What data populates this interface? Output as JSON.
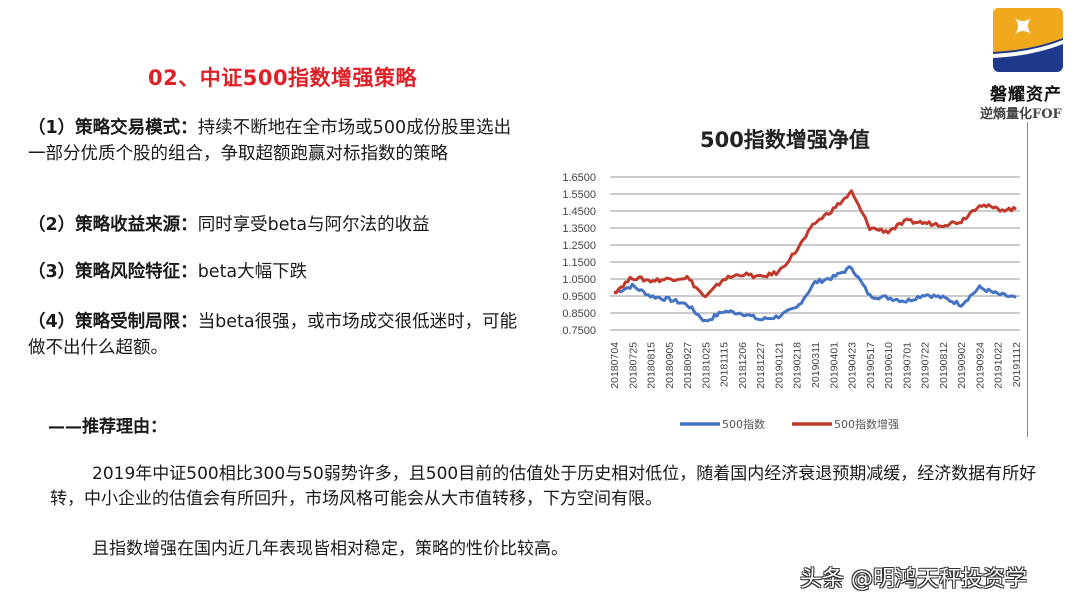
{
  "slide": {
    "title": "02、中证500指数增强策略",
    "items": [
      {
        "label": "（1）策略交易模式：",
        "text": "持续不断地在全市场或500成份股里选出一部分优质个股的组合，争取超额跑赢对标指数的策略"
      },
      {
        "label": "（2）策略收益来源：",
        "text": "同时享受beta与阿尔法的收益"
      },
      {
        "label": "（3）策略风险特征：",
        "text": "beta大幅下跌"
      },
      {
        "label": "（4）策略受制局限：",
        "text": "当beta很强，或市场成交很低迷时，可能做不出什么超额。"
      }
    ],
    "reason_heading": "——推荐理由：",
    "paragraphs": [
      "2019年中证500相比300与50弱势许多，且500目前的估值处于历史相对低位，随着国内经济衰退预期减缓，经济数据有所好转，中小企业的估值会有所回升，市场风格可能会从大市值转移，下方空间有限。",
      "且指数增强在国内近几年表现皆相对稳定，策略的性价比较高。"
    ]
  },
  "brand": {
    "name": "磐耀资产",
    "tagline": "逆熵量化FOF",
    "colors": {
      "gold": "#f0a81c",
      "navy": "#1f3a8c"
    }
  },
  "watermark": "头条 @明鸿天秤投资学",
  "chart_data": {
    "type": "line",
    "title": "500指数增强净值",
    "xlabel": "",
    "ylabel": "",
    "ylim": [
      0.75,
      1.65
    ],
    "yticks": [
      "1.6500",
      "1.5500",
      "1.4500",
      "1.3500",
      "1.2500",
      "1.1500",
      "1.0500",
      "0.9500",
      "0.8500",
      "0.7500"
    ],
    "categories": [
      "20180704",
      "20180725",
      "20180815",
      "20180905",
      "20180927",
      "20181025",
      "20181115",
      "20181206",
      "20181227",
      "20190121",
      "20190218",
      "20190311",
      "20190401",
      "20190423",
      "20190517",
      "20190610",
      "20190701",
      "20190722",
      "20190812",
      "20190902",
      "20190924",
      "20191022",
      "20191112"
    ],
    "grid": true,
    "legend_position": "bottom",
    "series": [
      {
        "name": "500指数",
        "color": "#4472c4",
        "values": [
          0.97,
          1.01,
          0.95,
          0.93,
          0.9,
          0.8,
          0.86,
          0.85,
          0.81,
          0.83,
          0.88,
          1.03,
          1.06,
          1.12,
          0.95,
          0.94,
          0.92,
          0.96,
          0.94,
          0.9,
          1.0,
          0.96,
          0.94
        ]
      },
      {
        "name": "500指数增强",
        "color": "#c0392b",
        "values": [
          0.97,
          1.06,
          1.04,
          1.05,
          1.06,
          0.94,
          1.05,
          1.08,
          1.06,
          1.09,
          1.22,
          1.38,
          1.46,
          1.56,
          1.35,
          1.33,
          1.39,
          1.38,
          1.37,
          1.39,
          1.49,
          1.46,
          1.46
        ]
      }
    ]
  }
}
